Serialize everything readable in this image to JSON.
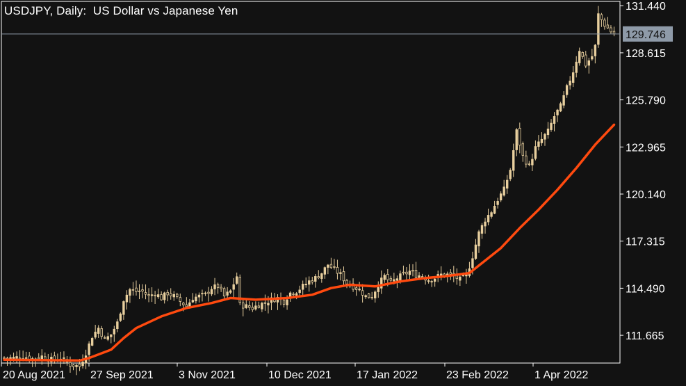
{
  "title": "USDJPY, Daily:  US Dollar vs Japanese Yen",
  "current_price": "129.746",
  "colors": {
    "background": "#121212",
    "frame": "#ffffff",
    "candle": "#e8cf9e",
    "moving_average": "#ff4a0f",
    "price_line": "#8e9aa8",
    "price_tag": "#8e9aa8",
    "text": "#ffffff"
  },
  "chart_data": {
    "type": "candlestick",
    "instrument": "USDJPY",
    "timeframe": "Daily",
    "ylim": [
      110.0,
      131.7
    ],
    "y_ticks": [
      "131.440",
      "128.615",
      "125.790",
      "122.965",
      "120.140",
      "117.315",
      "114.490",
      "111.665"
    ],
    "x_ticks": [
      "20 Aug 2021",
      "27 Sep 2021",
      "3 Nov 2021",
      "10 Dec 2021",
      "17 Jan 2022",
      "23 Feb 2022",
      "1 Apr 2022"
    ],
    "last_price": 129.746,
    "close_points": [
      [
        0,
        110.3
      ],
      [
        3,
        110.3
      ],
      [
        6,
        110.4
      ],
      [
        9,
        110.25
      ],
      [
        12,
        110.4
      ],
      [
        15,
        110.2
      ],
      [
        18,
        110.3
      ],
      [
        21,
        109.9
      ],
      [
        24,
        109.8
      ],
      [
        26,
        110.6
      ],
      [
        28,
        111.6
      ],
      [
        30,
        112.1
      ],
      [
        32,
        111.4
      ],
      [
        34,
        111.7
      ],
      [
        36,
        112.4
      ],
      [
        38,
        113.8
      ],
      [
        40,
        114.4
      ],
      [
        42,
        114.3
      ],
      [
        44,
        114.3
      ],
      [
        46,
        114.0
      ],
      [
        48,
        114.2
      ],
      [
        50,
        113.9
      ],
      [
        52,
        114.2
      ],
      [
        54,
        114.0
      ],
      [
        56,
        113.7
      ],
      [
        58,
        113.4
      ],
      [
        60,
        113.9
      ],
      [
        62,
        114.0
      ],
      [
        64,
        114.1
      ],
      [
        66,
        114.5
      ],
      [
        68,
        114.6
      ],
      [
        70,
        114.0
      ],
      [
        72,
        114.3
      ],
      [
        74,
        115.2
      ],
      [
        75,
        113.5
      ],
      [
        77,
        113.4
      ],
      [
        79,
        113.3
      ],
      [
        81,
        113.5
      ],
      [
        83,
        113.6
      ],
      [
        85,
        113.8
      ],
      [
        87,
        113.9
      ],
      [
        89,
        113.7
      ],
      [
        91,
        114.2
      ],
      [
        93,
        114.3
      ],
      [
        95,
        114.6
      ],
      [
        97,
        114.9
      ],
      [
        99,
        115.1
      ],
      [
        101,
        115.4
      ],
      [
        103,
        115.9
      ],
      [
        105,
        115.6
      ],
      [
        107,
        115.3
      ],
      [
        109,
        114.8
      ],
      [
        111,
        114.6
      ],
      [
        113,
        114.4
      ],
      [
        115,
        114.0
      ],
      [
        117,
        114.0
      ],
      [
        119,
        114.7
      ],
      [
        121,
        115.2
      ],
      [
        123,
        114.8
      ],
      [
        125,
        115.1
      ],
      [
        127,
        115.3
      ],
      [
        129,
        115.5
      ],
      [
        131,
        115.3
      ],
      [
        133,
        115.2
      ],
      [
        135,
        115.0
      ],
      [
        137,
        115.1
      ],
      [
        139,
        115.3
      ],
      [
        141,
        115.3
      ],
      [
        143,
        115.2
      ],
      [
        145,
        115.0
      ],
      [
        147,
        115.2
      ],
      [
        149,
        116.4
      ],
      [
        151,
        117.8
      ],
      [
        153,
        118.6
      ],
      [
        155,
        119.1
      ],
      [
        157,
        119.8
      ],
      [
        159,
        120.4
      ],
      [
        161,
        121.6
      ],
      [
        163,
        123.9
      ],
      [
        165,
        122.4
      ],
      [
        167,
        121.8
      ],
      [
        169,
        122.9
      ],
      [
        171,
        123.4
      ],
      [
        173,
        123.9
      ],
      [
        175,
        124.8
      ],
      [
        177,
        125.4
      ],
      [
        179,
        126.5
      ],
      [
        181,
        127.5
      ],
      [
        183,
        128.8
      ],
      [
        185,
        127.9
      ],
      [
        187,
        128.4
      ],
      [
        188,
        129.0
      ],
      [
        189,
        130.9
      ],
      [
        191,
        130.3
      ],
      [
        193,
        129.9
      ],
      [
        194,
        129.75
      ]
    ],
    "moving_average": [
      [
        0,
        110.2
      ],
      [
        24,
        110.15
      ],
      [
        27,
        110.3
      ],
      [
        34,
        110.8
      ],
      [
        38,
        111.5
      ],
      [
        42,
        112.1
      ],
      [
        50,
        112.8
      ],
      [
        58,
        113.3
      ],
      [
        66,
        113.6
      ],
      [
        72,
        113.9
      ],
      [
        80,
        113.8
      ],
      [
        90,
        113.9
      ],
      [
        98,
        114.1
      ],
      [
        104,
        114.5
      ],
      [
        110,
        114.7
      ],
      [
        118,
        114.6
      ],
      [
        126,
        114.9
      ],
      [
        134,
        115.1
      ],
      [
        140,
        115.2
      ],
      [
        148,
        115.4
      ],
      [
        152,
        116.0
      ],
      [
        158,
        116.9
      ],
      [
        164,
        118.1
      ],
      [
        170,
        119.2
      ],
      [
        176,
        120.4
      ],
      [
        182,
        121.7
      ],
      [
        188,
        123.1
      ],
      [
        192,
        123.9
      ],
      [
        194,
        124.3
      ]
    ]
  }
}
